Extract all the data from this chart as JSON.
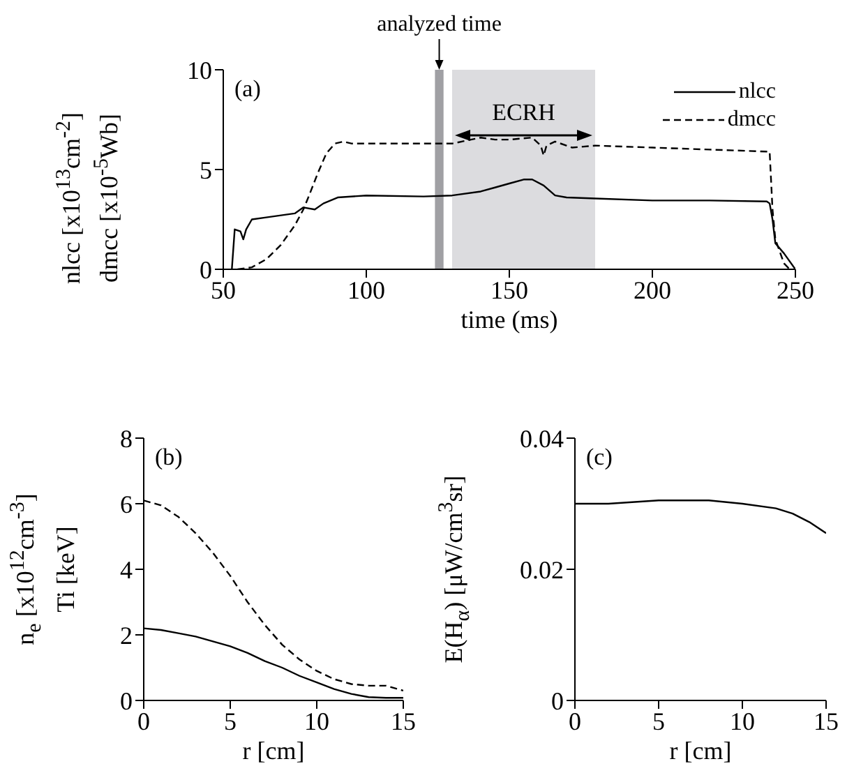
{
  "chart_data": [
    {
      "type": "line",
      "title": "(a)",
      "xlabel": "time (ms)",
      "ylabel": "nlcc [x10$^{13}$cm$^{-2}$]\ndmcc [x10$^{-5}$Wb]",
      "xlim": [
        50,
        250
      ],
      "xticks": [
        50,
        100,
        150,
        200,
        250
      ],
      "ylim": [
        0,
        10
      ],
      "yticks": [
        0,
        5,
        10
      ],
      "legend": "top right",
      "marker": "none",
      "series": [
        {
          "name": "nlcc",
          "color": "#000000",
          "line_style": "solid",
          "x": [
            53,
            54,
            56,
            57,
            58,
            60,
            65,
            75,
            78,
            82,
            85,
            90,
            100,
            120,
            130,
            140,
            145,
            150,
            155,
            158,
            162,
            166,
            170,
            180,
            200,
            220,
            240,
            241,
            242,
            243,
            246,
            250
          ],
          "values": [
            0,
            2,
            1.9,
            1.5,
            2.0,
            2.5,
            2.6,
            2.8,
            3.1,
            3.0,
            3.3,
            3.6,
            3.7,
            3.65,
            3.7,
            3.9,
            4.1,
            4.3,
            4.5,
            4.5,
            4.2,
            3.7,
            3.6,
            3.55,
            3.45,
            3.45,
            3.4,
            3.3,
            2.5,
            1.3,
            0.8,
            0
          ]
        },
        {
          "name": "dmcc",
          "color": "#000000",
          "line_style": "dashed",
          "x": [
            55,
            60,
            65,
            70,
            75,
            78,
            80,
            83,
            86,
            89,
            92,
            95,
            100,
            120,
            130,
            140,
            145,
            150,
            158,
            161,
            162,
            163,
            166,
            172,
            180,
            200,
            220,
            240,
            241,
            242,
            243,
            246,
            248
          ],
          "values": [
            0,
            0.1,
            0.5,
            1.2,
            2.2,
            3.0,
            3.7,
            4.8,
            5.8,
            6.3,
            6.4,
            6.3,
            6.3,
            6.3,
            6.3,
            6.6,
            6.5,
            6.5,
            6.6,
            6.2,
            5.7,
            6.2,
            6.4,
            6.1,
            6.2,
            6.1,
            6.0,
            5.9,
            5.9,
            3.0,
            1.5,
            0.3,
            0
          ]
        }
      ],
      "bands": [
        {
          "axis": "x",
          "from": 124,
          "to": 127,
          "label": "analyzed time",
          "color": "#a0a0a4"
        },
        {
          "axis": "x",
          "from": 130,
          "to": 180,
          "label": "ECRH",
          "color": "#dcdcdf"
        }
      ]
    },
    {
      "type": "line",
      "title": "(b)",
      "xlabel": "r [cm]",
      "ylabel": "n$_{e}$ [x10$^{12}$cm$^{-3}$]\nTi [keV]",
      "xlim": [
        0,
        15
      ],
      "xticks": [
        0,
        5,
        10,
        15
      ],
      "ylim": [
        0,
        8
      ],
      "yticks": [
        0,
        2,
        4,
        6,
        8
      ],
      "marker": "none",
      "series": [
        {
          "color": "#000000",
          "line_style": "solid",
          "x": [
            0,
            1,
            2,
            3,
            4,
            5,
            6,
            7,
            8,
            9,
            10,
            11,
            12,
            13,
            14,
            15
          ],
          "values": [
            2.2,
            2.15,
            2.05,
            1.95,
            1.8,
            1.65,
            1.45,
            1.2,
            1.0,
            0.75,
            0.55,
            0.35,
            0.2,
            0.1,
            0.08,
            0.08
          ]
        },
        {
          "color": "#000000",
          "line_style": "dashed",
          "x": [
            0,
            1,
            2,
            3,
            4,
            5,
            6,
            7,
            8,
            9,
            10,
            11,
            12,
            13,
            14,
            15
          ],
          "values": [
            6.1,
            5.95,
            5.6,
            5.1,
            4.5,
            3.8,
            3.0,
            2.3,
            1.7,
            1.25,
            0.9,
            0.65,
            0.5,
            0.45,
            0.45,
            0.3
          ]
        }
      ]
    },
    {
      "type": "line",
      "title": "(c)",
      "xlabel": "r [cm]",
      "ylabel": "E(H$_{α}$) [μW/cm$^{3}$sr]",
      "xlim": [
        0,
        15
      ],
      "xticks": [
        0,
        5,
        10,
        15
      ],
      "ylim": [
        0,
        0.04
      ],
      "yticks": [
        0,
        0.02,
        0.04
      ],
      "marker": "none",
      "series": [
        {
          "color": "#000000",
          "line_style": "solid",
          "x": [
            0,
            2,
            5,
            8,
            10,
            12,
            13,
            14,
            15
          ],
          "values": [
            0.03,
            0.03,
            0.0305,
            0.0305,
            0.03,
            0.0293,
            0.0285,
            0.0272,
            0.0255
          ]
        }
      ]
    }
  ]
}
